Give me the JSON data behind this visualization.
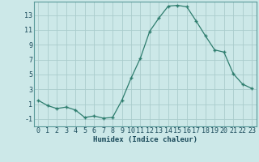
{
  "x": [
    0,
    1,
    2,
    3,
    4,
    5,
    6,
    7,
    8,
    9,
    10,
    11,
    12,
    13,
    14,
    15,
    16,
    17,
    18,
    19,
    20,
    21,
    22,
    23
  ],
  "y": [
    1.5,
    0.8,
    0.4,
    0.6,
    0.2,
    -0.8,
    -0.6,
    -0.9,
    -0.8,
    1.5,
    4.5,
    7.2,
    10.8,
    12.6,
    14.2,
    14.3,
    14.1,
    12.2,
    10.2,
    8.3,
    8.0,
    5.1,
    3.7,
    3.1
  ],
  "xlabel": "Humidex (Indice chaleur)",
  "line_color": "#2e7d6e",
  "marker": "+",
  "bg_color": "#cce8e8",
  "grid_color": "#aacccc",
  "xlim": [
    -0.5,
    23.5
  ],
  "ylim": [
    -2.0,
    14.8
  ],
  "yticks": [
    -1,
    1,
    3,
    5,
    7,
    9,
    11,
    13
  ],
  "xticks": [
    0,
    1,
    2,
    3,
    4,
    5,
    6,
    7,
    8,
    9,
    10,
    11,
    12,
    13,
    14,
    15,
    16,
    17,
    18,
    19,
    20,
    21,
    22,
    23
  ],
  "label_fontsize": 6.5,
  "tick_fontsize": 6.0
}
